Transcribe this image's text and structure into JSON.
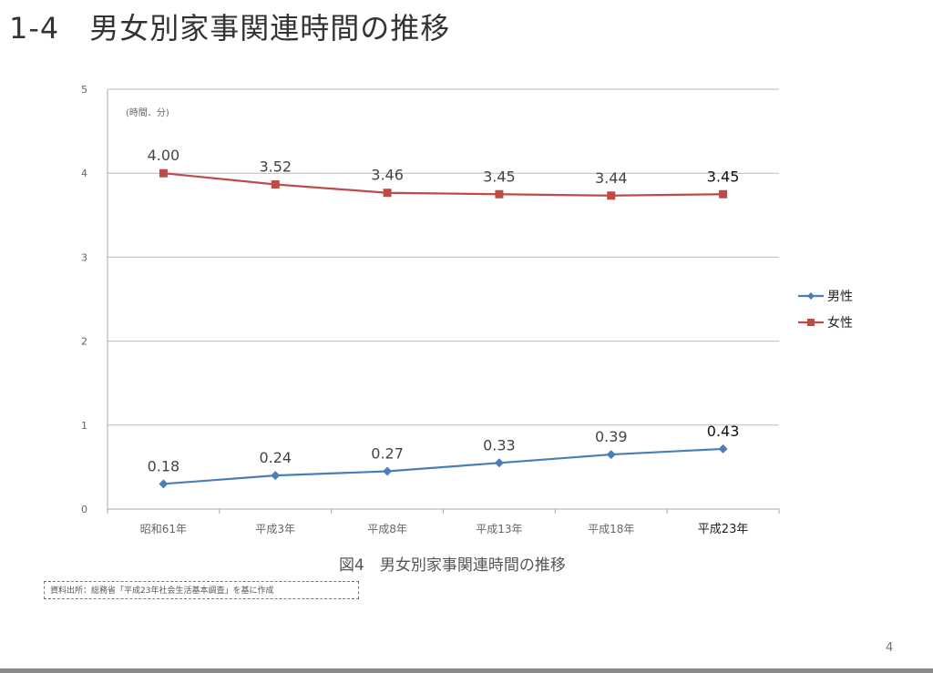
{
  "slide": {
    "title": "1-4　男女別家事関連時間の推移",
    "caption": "図4　男女別家事関連時間の推移",
    "source": "資料出所：総務省「平成23年社会生活基本調査」を基に作成",
    "page_number": "4"
  },
  "chart_data": {
    "type": "line",
    "title": "",
    "unit_label": "(時間．分)",
    "categories": [
      "昭和61年",
      "平成3年",
      "平成8年",
      "平成13年",
      "平成18年",
      "平成23年"
    ],
    "ylim": [
      0,
      5
    ],
    "yticks": [
      "0",
      "1",
      "2",
      "3",
      "4",
      "5"
    ],
    "value_format": "hours.minutes",
    "grid": true,
    "legend_placement": "right",
    "series": [
      {
        "name": "男性",
        "color": "#4a7ebb",
        "marker": "diamond",
        "values": [
          0.18,
          0.24,
          0.27,
          0.33,
          0.39,
          0.43
        ],
        "labels": [
          "0.18",
          "0.24",
          "0.27",
          "0.33",
          "0.39",
          "0.43"
        ]
      },
      {
        "name": "女性",
        "color": "#be4b48",
        "marker": "square",
        "values": [
          4.0,
          3.52,
          3.46,
          3.45,
          3.44,
          3.45
        ],
        "labels": [
          "4.00",
          "3.52",
          "3.46",
          "3.45",
          "3.44",
          "3.45"
        ]
      }
    ]
  }
}
